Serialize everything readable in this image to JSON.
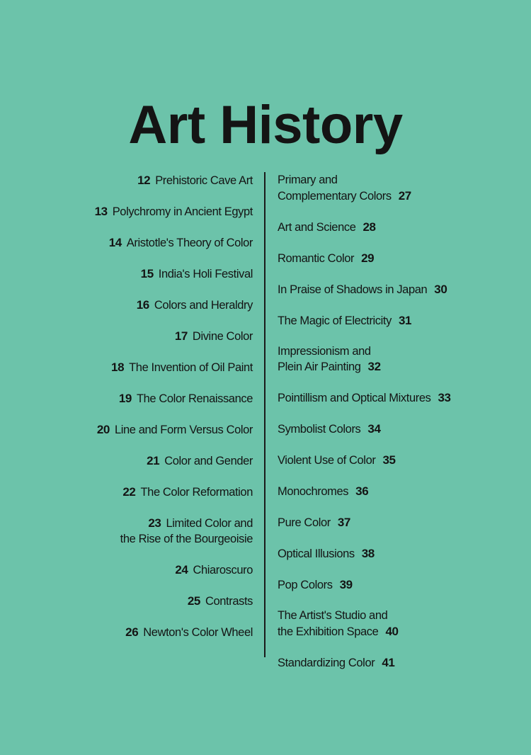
{
  "title": "Art History",
  "left_entries": [
    {
      "page": "12",
      "lines": [
        "Prehistoric Cave Art"
      ]
    },
    {
      "page": "13",
      "lines": [
        "Polychromy in Ancient Egypt"
      ]
    },
    {
      "page": "14",
      "lines": [
        "Aristotle's Theory of Color"
      ]
    },
    {
      "page": "15",
      "lines": [
        "India's Holi Festival"
      ]
    },
    {
      "page": "16",
      "lines": [
        "Colors and Heraldry"
      ]
    },
    {
      "page": "17",
      "lines": [
        "Divine Color"
      ]
    },
    {
      "page": "18",
      "lines": [
        "The Invention of Oil Paint"
      ]
    },
    {
      "page": "19",
      "lines": [
        "The Color Renaissance"
      ]
    },
    {
      "page": "20",
      "lines": [
        "Line and Form Versus Color"
      ]
    },
    {
      "page": "21",
      "lines": [
        "Color and Gender"
      ]
    },
    {
      "page": "22",
      "lines": [
        "The Color Reformation"
      ]
    },
    {
      "page": "23",
      "lines": [
        "Limited Color and",
        "the Rise of the Bourgeoisie"
      ]
    },
    {
      "page": "24",
      "lines": [
        "Chiaroscuro"
      ]
    },
    {
      "page": "25",
      "lines": [
        "Contrasts"
      ]
    },
    {
      "page": "26",
      "lines": [
        "Newton's Color Wheel"
      ]
    }
  ],
  "right_entries": [
    {
      "page": "27",
      "lines": [
        "Primary and",
        "Complementary Colors"
      ]
    },
    {
      "page": "28",
      "lines": [
        "Art and Science"
      ]
    },
    {
      "page": "29",
      "lines": [
        "Romantic Color"
      ]
    },
    {
      "page": "30",
      "lines": [
        "In Praise of Shadows in Japan"
      ]
    },
    {
      "page": "31",
      "lines": [
        "The Magic of Electricity"
      ]
    },
    {
      "page": "32",
      "lines": [
        "Impressionism and",
        "Plein Air Painting"
      ]
    },
    {
      "page": "33",
      "lines": [
        "Pointillism and Optical Mixtures"
      ]
    },
    {
      "page": "34",
      "lines": [
        "Symbolist Colors"
      ]
    },
    {
      "page": "35",
      "lines": [
        "Violent Use of Color"
      ]
    },
    {
      "page": "36",
      "lines": [
        "Monochromes"
      ]
    },
    {
      "page": "37",
      "lines": [
        "Pure Color"
      ]
    },
    {
      "page": "38",
      "lines": [
        "Optical Illusions"
      ]
    },
    {
      "page": "39",
      "lines": [
        "Pop Colors"
      ]
    },
    {
      "page": "40",
      "lines": [
        "The Artist's Studio and",
        "the Exhibition Space"
      ]
    },
    {
      "page": "41",
      "lines": [
        "Standardizing Color"
      ]
    }
  ],
  "colors": {
    "background": "#6cc3aa",
    "text": "#141414"
  }
}
